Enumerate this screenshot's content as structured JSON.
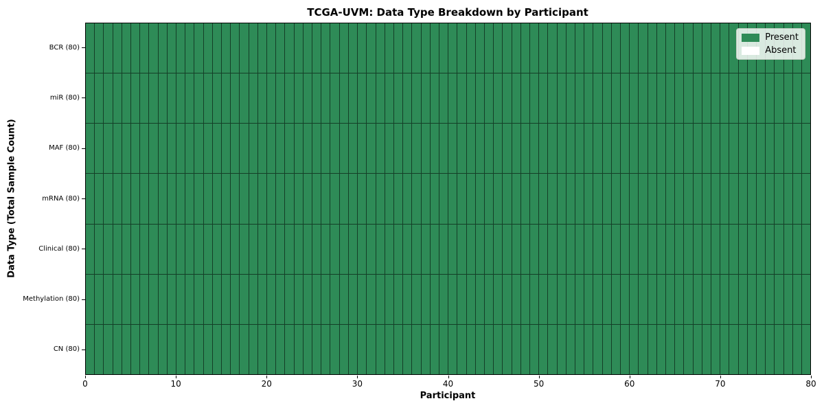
{
  "title": "TCGA-UVM: Data Type Breakdown by Participant",
  "axes": {
    "x_label": "Participant",
    "y_label": "Data Type (Total Sample Count)",
    "x_ticks": [
      0,
      10,
      20,
      30,
      40,
      50,
      60,
      70,
      80
    ]
  },
  "legend": {
    "items": [
      {
        "label": "Present",
        "color": "#2e8b57"
      },
      {
        "label": "Absent",
        "color": "#ffffff"
      }
    ]
  },
  "colors": {
    "present": "#2e8b57",
    "absent": "#ffffff",
    "grid_line": "rgba(0,0,0,0.55)"
  },
  "chart_data": {
    "type": "heatmap",
    "title": "TCGA-UVM: Data Type Breakdown by Participant",
    "xlabel": "Participant",
    "ylabel": "Data Type (Total Sample Count)",
    "x_range": [
      0,
      80
    ],
    "n_participants": 80,
    "legend_position": "upper right",
    "grid": true,
    "rows": [
      {
        "label": "BCR (80)",
        "data_type": "BCR",
        "total_samples": 80,
        "present_count": 80,
        "absent_count": 0
      },
      {
        "label": "miR (80)",
        "data_type": "miR",
        "total_samples": 80,
        "present_count": 80,
        "absent_count": 0
      },
      {
        "label": "MAF (80)",
        "data_type": "MAF",
        "total_samples": 80,
        "present_count": 80,
        "absent_count": 0
      },
      {
        "label": "mRNA (80)",
        "data_type": "mRNA",
        "total_samples": 80,
        "present_count": 80,
        "absent_count": 0
      },
      {
        "label": "Clinical (80)",
        "data_type": "Clinical",
        "total_samples": 80,
        "present_count": 80,
        "absent_count": 0
      },
      {
        "label": "Methylation (80)",
        "data_type": "Methylation",
        "total_samples": 80,
        "present_count": 80,
        "absent_count": 0
      },
      {
        "label": "CN (80)",
        "data_type": "CN",
        "total_samples": 80,
        "present_count": 80,
        "absent_count": 0
      }
    ]
  }
}
